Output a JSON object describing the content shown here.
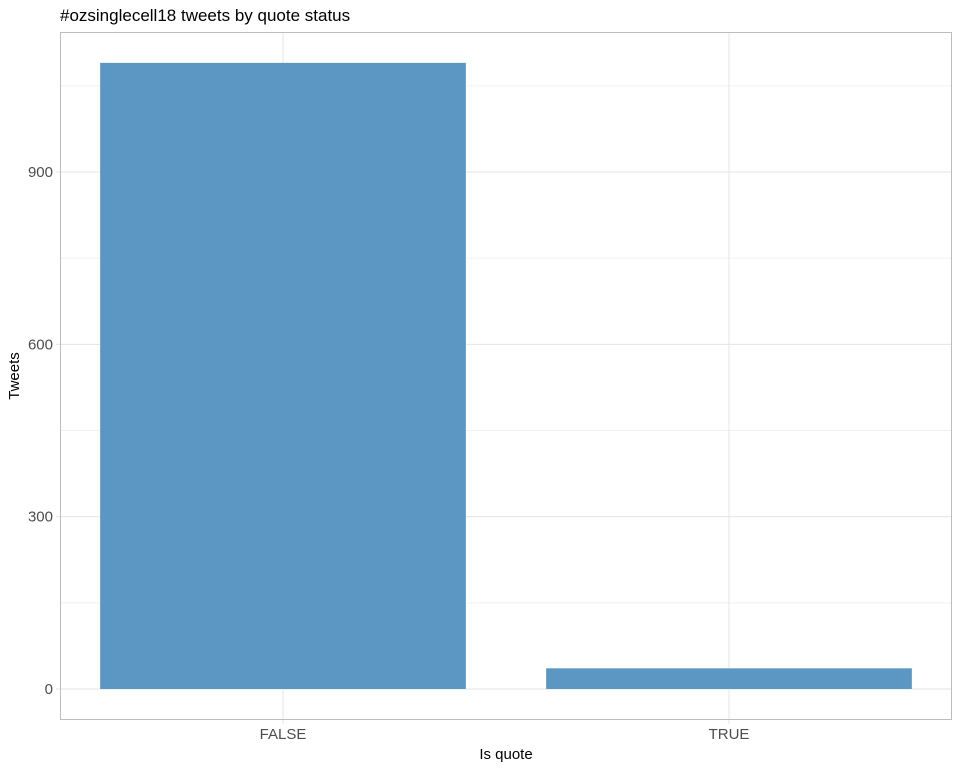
{
  "chart_data": {
    "type": "bar",
    "title": "#ozsinglecell18 tweets by quote status",
    "xlabel": "Is quote",
    "ylabel": "Tweets",
    "categories": [
      "FALSE",
      "TRUE"
    ],
    "values": [
      1090,
      36
    ],
    "ylim": [
      0,
      1150
    ],
    "yticks": [
      0,
      300,
      600,
      900
    ],
    "grid": true,
    "legend": "none"
  },
  "colors": {
    "bar": "#5b97c2",
    "grid_major": "#e4e4e4",
    "grid_minor": "#f1f1f1",
    "panel_border": "#bdbdbd",
    "tick_text": "#4d4d4d"
  }
}
